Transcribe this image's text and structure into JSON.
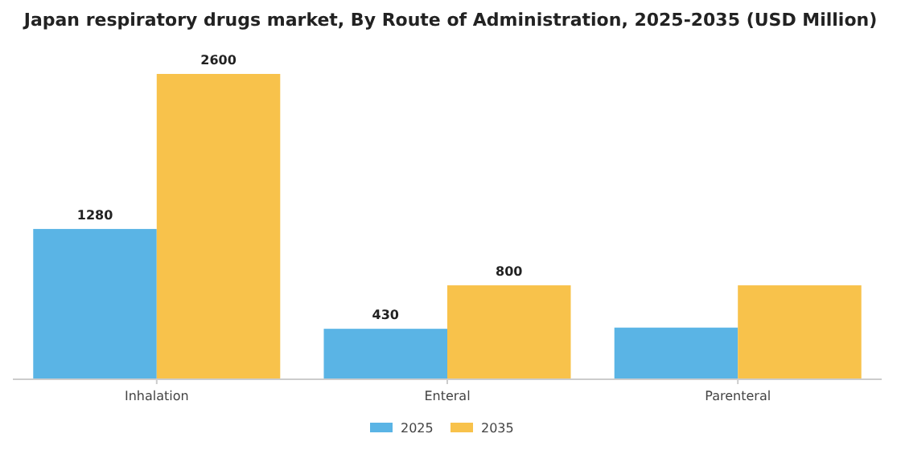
{
  "chart_data": {
    "type": "bar",
    "title": "Japan respiratory drugs market, By Route of Administration, 2025-2035 (USD Million)",
    "categories": [
      "Inhalation",
      "Enteral",
      "Parenteral"
    ],
    "series": [
      {
        "name": "2025",
        "color": "#5ab4e5",
        "values": [
          1280,
          430,
          440
        ],
        "value_labels": [
          "1280",
          "430",
          null
        ]
      },
      {
        "name": "2035",
        "color": "#f8c24b",
        "values": [
          2600,
          800,
          800
        ],
        "value_labels": [
          "2600",
          "800",
          null
        ]
      }
    ],
    "tick_labels": "x",
    "legend": "bottom",
    "grid": false
  }
}
